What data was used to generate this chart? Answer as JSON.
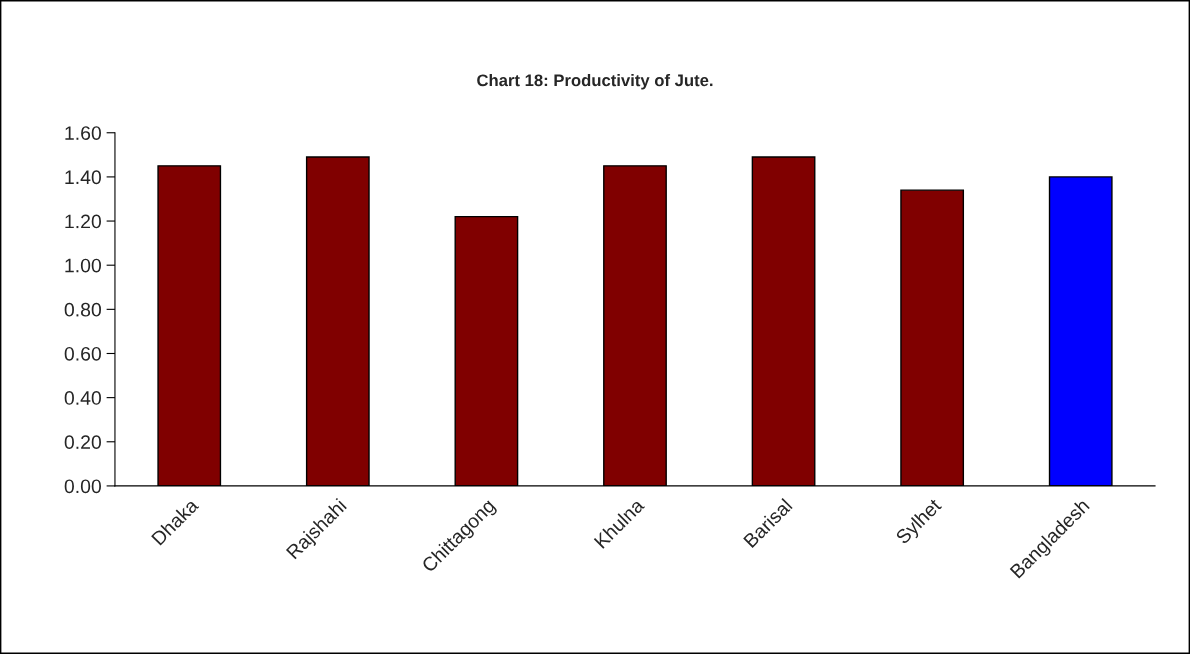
{
  "chart_data": {
    "type": "bar",
    "title": "Chart 18: Productivity of Jute.",
    "categories": [
      "Dhaka",
      "Rajshahi",
      "Chittagong",
      "Khulna",
      "Barisal",
      "Sylhet",
      "Bangladesh"
    ],
    "values": [
      1.45,
      1.49,
      1.22,
      1.45,
      1.49,
      1.34,
      1.4
    ],
    "colors": [
      "#800000",
      "#800000",
      "#800000",
      "#800000",
      "#800000",
      "#800000",
      "#0000ff"
    ],
    "ylim": [
      0,
      1.6
    ],
    "yticks": [
      {
        "value": 0,
        "label": "0.00"
      },
      {
        "value": 0.2,
        "label": "0.20"
      },
      {
        "value": 0.4,
        "label": "0.40"
      },
      {
        "value": 0.6,
        "label": "0.60"
      },
      {
        "value": 0.8,
        "label": "0.80"
      },
      {
        "value": 1.0,
        "label": "1.00"
      },
      {
        "value": 1.2,
        "label": "1.20"
      },
      {
        "value": 1.4,
        "label": "1.40"
      },
      {
        "value": 1.6,
        "label": "1.60"
      }
    ],
    "grid": false
  }
}
